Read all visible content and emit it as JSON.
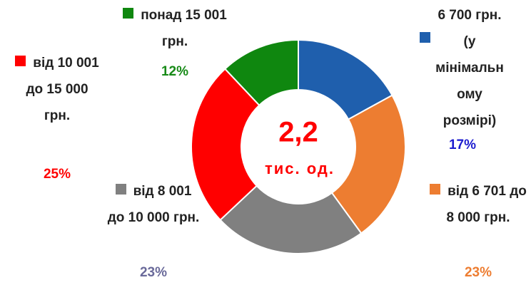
{
  "chart_data": {
    "type": "pie",
    "donut": true,
    "categories": [
      "6 700 грн. (у мінімальному розмірі)",
      "від 6 701 до 8 000 грн.",
      "від 8 001 до 10 000 грн.",
      "від 10 001 до 15 000 грн.",
      "понад 15 001 грн."
    ],
    "values": [
      17,
      23,
      23,
      25,
      12
    ],
    "value_labels": [
      "17%",
      "23%",
      "23%",
      "25%",
      "12%"
    ],
    "colors": [
      "#1f5fad",
      "#ed7d31",
      "#808080",
      "#ff0000",
      "#0f870f"
    ],
    "label_colors": [
      "#1c1ccf",
      "#ed7d31",
      "#6a6a9a",
      "#ff0000",
      "#178a17"
    ],
    "center_text": [
      "2,2",
      "тис. од."
    ]
  }
}
